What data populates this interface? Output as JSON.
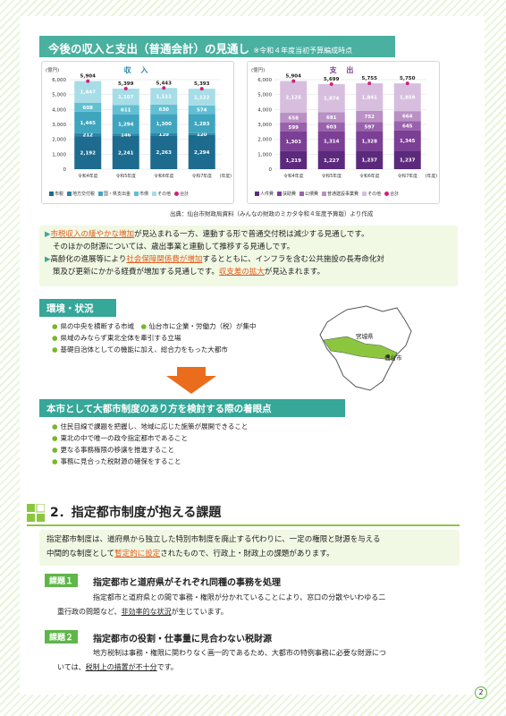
{
  "section_title": "今後の収入と支出（普通会計）の見通し",
  "section_note": "※令和４年度当初予算編成時点",
  "charts": {
    "unit": "(億円)",
    "year_suffix": "(年度)",
    "yticks": [
      "0",
      "1,000",
      "2,000",
      "3,000",
      "4,000",
      "5,000",
      "6,000"
    ],
    "income_legend": [
      "市税",
      "地方交付税",
      "国・県支出金",
      "市債",
      "その他",
      "合計"
    ],
    "expense_legend": [
      "人件費",
      "扶助費",
      "公債費",
      "普通建設事業費",
      "その他",
      "合計"
    ]
  },
  "chart_data": [
    {
      "type": "bar",
      "title": "収 入",
      "ylabel": "(億円)",
      "xlabel": "(年度)",
      "ylim": [
        0,
        6000
      ],
      "categories": [
        "令和4年度",
        "令和5年度",
        "令和6年度",
        "令和7年度"
      ],
      "series": [
        {
          "name": "市税",
          "values": [
            2192,
            2241,
            2263,
            2294
          ],
          "color": "#1d6b8f"
        },
        {
          "name": "地方交付税",
          "values": [
            212,
            146,
            139,
            120
          ],
          "color": "#2b86a8"
        },
        {
          "name": "国・県支出金",
          "values": [
            1445,
            1294,
            1300,
            1283
          ],
          "color": "#3fa5bf"
        },
        {
          "name": "市債",
          "values": [
            608,
            611,
            630,
            574
          ],
          "color": "#63bfd2"
        },
        {
          "name": "その他",
          "values": [
            1447,
            1107,
            1111,
            1122
          ],
          "color": "#a7dde7"
        }
      ],
      "totals": [
        5904,
        5399,
        5443,
        5393
      ],
      "total_color": "#d11f7a"
    },
    {
      "type": "bar",
      "title": "支 出",
      "ylabel": "(億円)",
      "xlabel": "(年度)",
      "ylim": [
        0,
        6000
      ],
      "categories": [
        "令和4年度",
        "令和5年度",
        "令和6年度",
        "令和7年度"
      ],
      "series": [
        {
          "name": "人件費",
          "values": [
            1219,
            1227,
            1237,
            1237
          ],
          "color": "#5c2a7c"
        },
        {
          "name": "扶助費",
          "values": [
            1303,
            1314,
            1328,
            1345
          ],
          "color": "#7b3f95"
        },
        {
          "name": "公債費",
          "values": [
            599,
            603,
            597,
            645
          ],
          "color": "#9a62ad"
        },
        {
          "name": "普通建設事業費",
          "values": [
            658,
            681,
            752,
            664
          ],
          "color": "#b991c5"
        },
        {
          "name": "その他",
          "values": [
            2125,
            1874,
            1841,
            1859
          ],
          "color": "#d7bedf"
        }
      ],
      "totals": [
        5904,
        5699,
        5755,
        5750
      ],
      "total_color": "#d11f7a"
    }
  ],
  "source": "出典：仙台市財政局資料（みんなの財政のミカタ令和４年度予算版）より作成",
  "note": {
    "l1a": "市税収入の緩やかな増加",
    "l1b": "が見込まれる一方、連動する形で普通交付税は減少する見通しです。",
    "l2": "そのほかの財源については、歳出事業と連動して推移する見通しです。",
    "l3a": "高齢化の進展等により",
    "l3b": "社会保障関係費が増加",
    "l3c": "するとともに、インフラを含む公共施設の長寿命化対",
    "l4a": "策及び更新にかかる経費が増加する見通しです。",
    "l4b": "収支差の拡大",
    "l4c": "が見込まれます。"
  },
  "env": {
    "title": "環境・状況",
    "items": [
      "県の中央を横断する市域",
      "仙台市に企業・労働力（税）が集中",
      "県域のみならず東北全体を牽引する立場",
      "基礎自治体としての機能に加え、総合力をもった大都市"
    ],
    "map_pref": "宮城県",
    "map_city": "仙台市"
  },
  "focus": {
    "title": "本市として大都市制度のあり方を検討する際の着眼点",
    "items": [
      "住民目線で課題を把握し、地域に応じた施策が展開できること",
      "東北の中で唯一の政令指定都市であること",
      "更なる事務権限の移譲を推進すること",
      "事務に見合った税財源の確保をすること"
    ]
  },
  "sec2": {
    "num": "2．",
    "title": "指定都市制度が抱える課題",
    "i1": "指定都市制度は、道府県から独立した特別市制度を廃止する代わりに、一定の権限と財源を与える",
    "i2a": "中間的な制度として",
    "i2b": "暫定的に設定",
    "i2c": "されたもので、行政上・財政上の課題があります。"
  },
  "k1": {
    "label": "課題１",
    "title": "指定都市と道府県がそれぞれ同種の事務を処理",
    "p1": "指定都市と道府県との間で事務・権限が分かれていることにより、窓口の分散やいわゆる二",
    "p2a": "重行政の問題など、",
    "p2b": "非効率的な状況",
    "p2c": "が生じています。"
  },
  "k2": {
    "label": "課題２",
    "title": "指定都市の役割・仕事量に見合わない税財源",
    "p1": "地方税制は事務・権限に関わりなく画一的であるため、大都市の特例事務に必要な財源につ",
    "p2a": "いては、",
    "p2b": "税制上の措置が不十分",
    "p2c": "です。"
  },
  "page_number": "2"
}
